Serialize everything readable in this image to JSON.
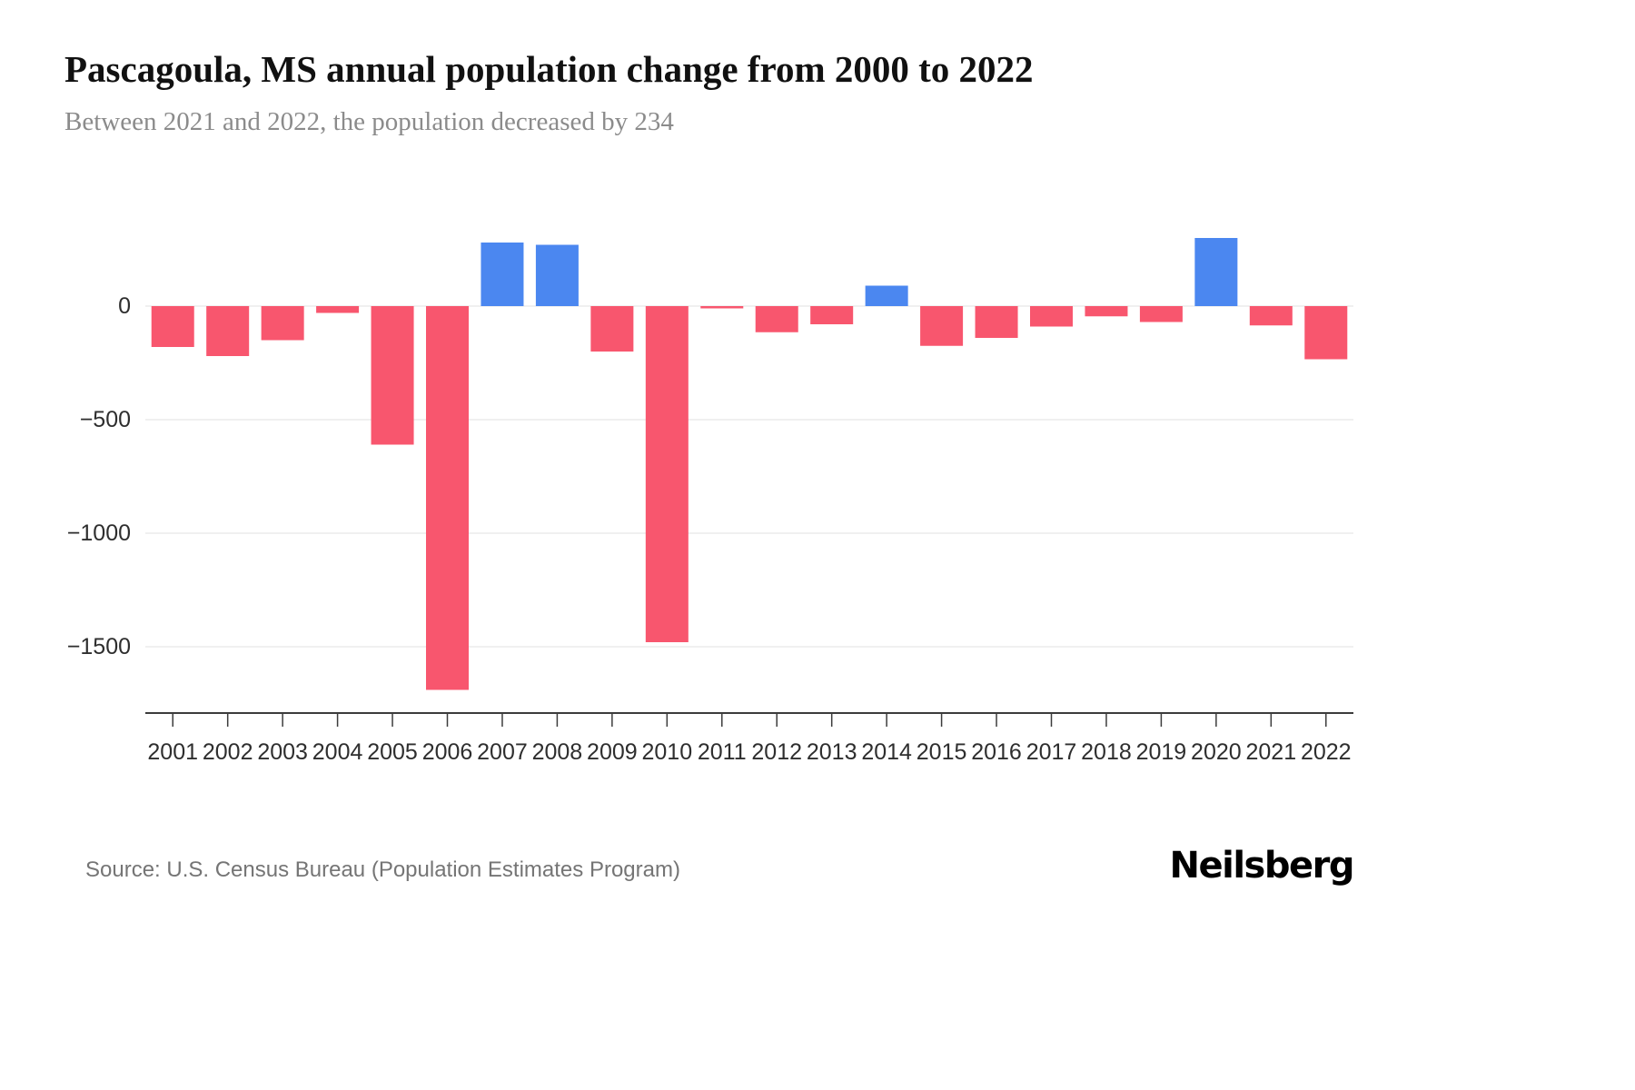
{
  "header": {
    "title": "Pascagoula, MS annual population change from 2000 to 2022",
    "subtitle": "Between 2021 and 2022, the population decreased by 234"
  },
  "footer": {
    "source": "Source: U.S. Census Bureau (Population Estimates Program)",
    "logo": "Neilsberg"
  },
  "chart_data": {
    "type": "bar",
    "title": "Pascagoula, MS annual population change from 2000 to 2022",
    "xlabel": "",
    "ylabel": "",
    "categories": [
      "2001",
      "2002",
      "2003",
      "2004",
      "2005",
      "2006",
      "2007",
      "2008",
      "2009",
      "2010",
      "2011",
      "2012",
      "2013",
      "2014",
      "2015",
      "2016",
      "2017",
      "2018",
      "2019",
      "2020",
      "2021",
      "2022"
    ],
    "values": [
      -180,
      -220,
      -150,
      -30,
      -610,
      -1690,
      280,
      270,
      -200,
      -1480,
      -10,
      -115,
      -80,
      90,
      -175,
      -140,
      -90,
      -45,
      -70,
      300,
      -85,
      -234
    ],
    "ylim": [
      -1750,
      400
    ],
    "yticks": [
      0,
      -500,
      -1000,
      -1500
    ],
    "grid": true,
    "legend": false,
    "colors": {
      "positive": "#4b87f0",
      "negative": "#f8566e",
      "gridline": "#ebebeb",
      "axis": "#3c3c3c",
      "tick_label": "#2e2e2e"
    }
  }
}
